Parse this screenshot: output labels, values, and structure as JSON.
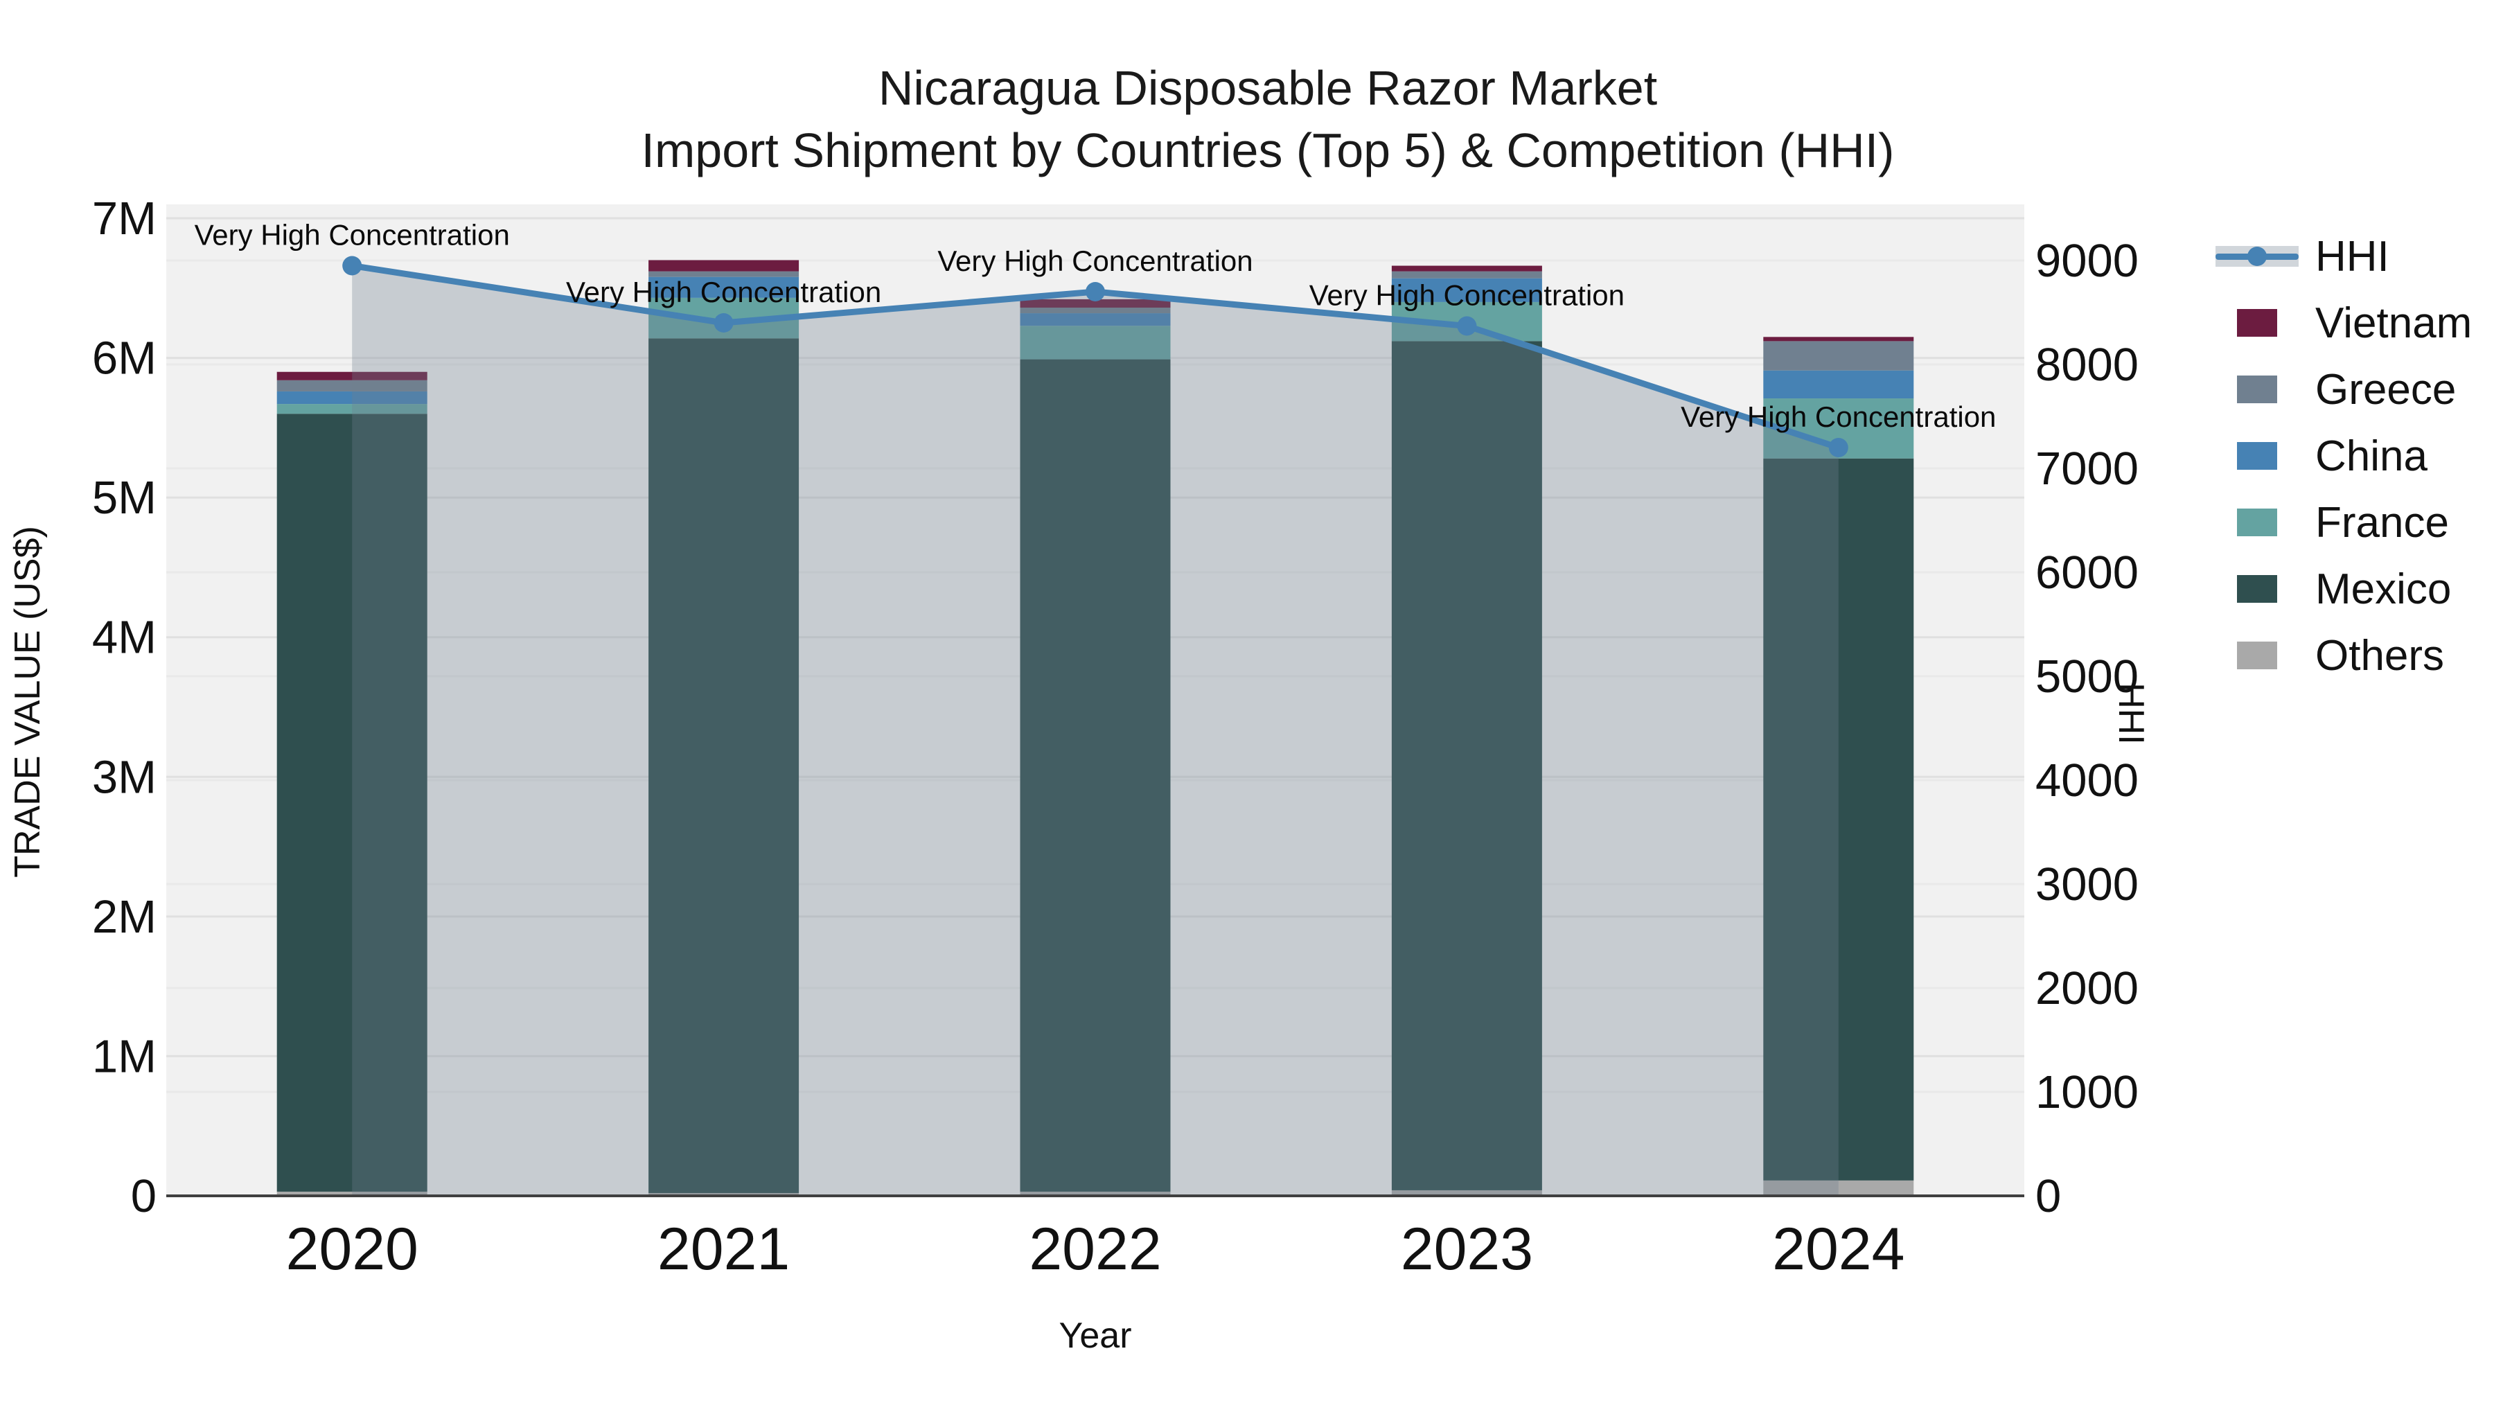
{
  "figure": {
    "title_line1": "Nicaragua Disposable Razor Market",
    "title_line2": "Import Shipment by Countries (Top 5) & Competition (HHI)"
  },
  "axes": {
    "y_left_title": "TRADE VALUE (US$)",
    "y_left_ticks": [
      "0",
      "1M",
      "2M",
      "3M",
      "4M",
      "5M",
      "6M",
      "7M"
    ],
    "y_right_title": "HHI",
    "y_right_ticks": [
      "0",
      "1000",
      "2000",
      "3000",
      "4000",
      "5000",
      "6000",
      "7000",
      "8000",
      "9000"
    ],
    "x_title": "Year",
    "x_ticks": [
      "2020",
      "2021",
      "2022",
      "2023",
      "2024"
    ]
  },
  "legend": {
    "items": [
      {
        "label": "HHI",
        "type": "line",
        "color": "#4682B4"
      },
      {
        "label": "Vietnam",
        "type": "patch",
        "color": "#6C1C40"
      },
      {
        "label": "Greece",
        "type": "patch",
        "color": "#708090"
      },
      {
        "label": "China",
        "type": "patch",
        "color": "#4682B4"
      },
      {
        "label": "France",
        "type": "patch",
        "color": "#64A3A1"
      },
      {
        "label": "Mexico",
        "type": "patch",
        "color": "#2F4F4F"
      },
      {
        "label": "Others",
        "type": "patch",
        "color": "#A9A9A9"
      }
    ]
  },
  "colors": {
    "plot_background": "#f1f1f1",
    "grid_left": "#e0e0e0",
    "grid_right": "#e9e9e9",
    "axis_spine": "#404040",
    "hhi_line": "#4682B4",
    "hhi_area_fill": "rgba(112,128,144,0.32)"
  },
  "chart_data": [
    {
      "type": "bar",
      "stacked": true,
      "title": "Nicaragua Disposable Razor Market — Import Shipment by Countries (Top 5)",
      "xlabel": "Year",
      "ylabel": "TRADE VALUE (US$)",
      "y_unit": "million US$",
      "ylim": [
        0,
        7
      ],
      "grid": true,
      "categories": [
        "2020",
        "2021",
        "2022",
        "2023",
        "2024"
      ],
      "series": [
        {
          "name": "Others",
          "color": "#A9A9A9",
          "values": [
            0.03,
            0.02,
            0.03,
            0.04,
            0.11
          ]
        },
        {
          "name": "Mexico",
          "color": "#2F4F4F",
          "values": [
            5.57,
            6.12,
            5.96,
            6.08,
            5.17
          ]
        },
        {
          "name": "France",
          "color": "#64A3A1",
          "values": [
            0.07,
            0.29,
            0.24,
            0.28,
            0.43
          ]
        },
        {
          "name": "China",
          "color": "#4682B4",
          "values": [
            0.09,
            0.15,
            0.09,
            0.17,
            0.2
          ]
        },
        {
          "name": "Greece",
          "color": "#708090",
          "values": [
            0.08,
            0.04,
            0.04,
            0.05,
            0.21
          ]
        },
        {
          "name": "Vietnam",
          "color": "#6C1C40",
          "values": [
            0.06,
            0.08,
            0.06,
            0.04,
            0.03
          ]
        }
      ]
    },
    {
      "type": "line",
      "name": "HHI",
      "y_axis": "right",
      "ylabel": "HHI",
      "ylim": [
        0,
        9000
      ],
      "x": [
        "2020",
        "2021",
        "2022",
        "2023",
        "2024"
      ],
      "values": [
        8950,
        8400,
        8700,
        8370,
        7200
      ],
      "color": "#4682B4",
      "area_fill": "rgba(112,128,144,0.32)",
      "point_annotations": [
        "Very High Concentration",
        "Very High Concentration",
        "Very High Concentration",
        "Very High Concentration",
        "Very High Concentration"
      ]
    }
  ]
}
